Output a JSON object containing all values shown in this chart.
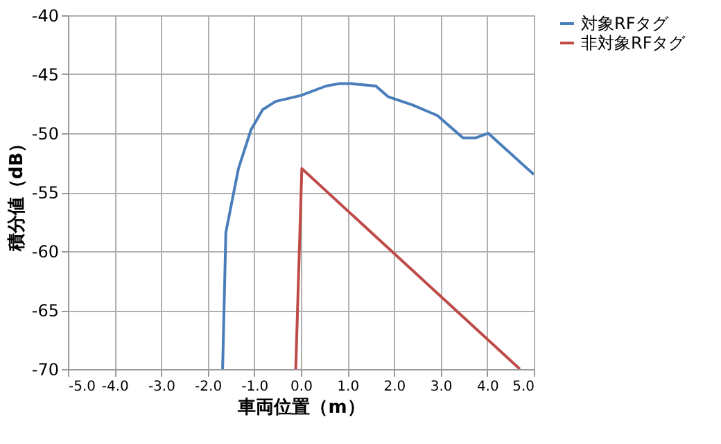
{
  "chart_data": {
    "type": "line",
    "xlabel": "車両位置（m）",
    "ylabel": "積分値（dB）",
    "xlim": [
      -5,
      5
    ],
    "xticks": [
      {
        "value": -5,
        "label": "-5.0"
      },
      {
        "value": -4,
        "label": "-4.0"
      },
      {
        "value": -3,
        "label": "-3.0"
      },
      {
        "value": -2,
        "label": "-2.0"
      },
      {
        "value": -1,
        "label": "-1.0"
      },
      {
        "value": 0,
        "label": "0.0"
      },
      {
        "value": 1,
        "label": "1.0"
      },
      {
        "value": 2,
        "label": "2.0"
      },
      {
        "value": 3,
        "label": "3.0"
      },
      {
        "value": 4,
        "label": "4.0"
      },
      {
        "value": 5,
        "label": "5.0"
      }
    ],
    "ylim": [
      -70,
      -40
    ],
    "yticks": [
      -70,
      -65,
      -60,
      -55,
      -50,
      -45,
      -40
    ],
    "grid": true,
    "legend": "right",
    "marker": "none",
    "line_style": "solid",
    "series": [
      {
        "name": "対象RFタグ",
        "color": "#4a7ebb",
        "x": [
          -1.68,
          -1.61,
          -1.34,
          -1.07,
          -0.82,
          -0.54,
          0.0,
          0.54,
          0.82,
          1.09,
          1.61,
          1.87,
          2.39,
          2.93,
          3.48,
          3.75,
          4.02,
          5.0
        ],
        "values": [
          -70,
          -58.4,
          -53.0,
          -49.7,
          -48.0,
          -47.3,
          -46.8,
          -46.0,
          -45.8,
          -45.8,
          -46.0,
          -46.9,
          -47.6,
          -48.5,
          -50.4,
          -50.4,
          -50.0,
          -53.5
        ]
      },
      {
        "name": "非対象RFタグ",
        "color": "#be4b48",
        "x": [
          -0.11,
          0.02,
          4.7
        ],
        "values": [
          -70,
          -53.0,
          -70
        ]
      }
    ]
  }
}
